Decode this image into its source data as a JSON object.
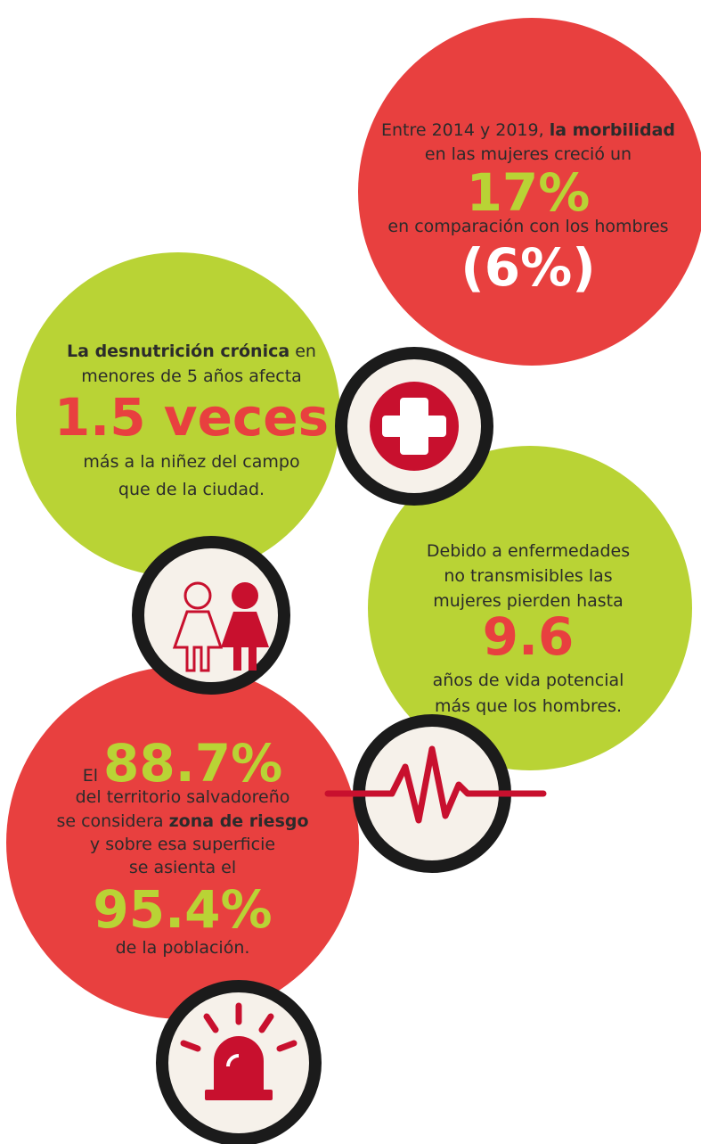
{
  "blocks": [
    {
      "circle_color": "#e8403f",
      "accent": "#b9d335",
      "lines": [
        {
          "segments": [
            {
              "text": "Entre 2014 y 2019, "
            },
            {
              "text": "la morbilidad",
              "style": "bold"
            }
          ]
        },
        {
          "segments": [
            {
              "text": "en las mujeres creció un"
            }
          ]
        },
        {
          "segments": [
            {
              "text": "17%",
              "style": "accent"
            }
          ]
        },
        {
          "segments": [
            {
              "text": "en comparación con los hombres"
            }
          ]
        },
        {
          "segments": [
            {
              "text": "(6%)",
              "style": "white"
            }
          ]
        }
      ]
    },
    {
      "circle_color": "#b9d335",
      "accent": "#e8403f",
      "lines": [
        {
          "segments": [
            {
              "text": "La desnutrición crónica",
              "style": "bold"
            },
            {
              "text": " en"
            }
          ]
        },
        {
          "segments": [
            {
              "text": "menores de 5 años afecta"
            }
          ]
        },
        {
          "segments": [
            {
              "text": "1.5 veces",
              "style": "accent"
            }
          ]
        },
        {
          "segments": [
            {
              "text": "más a la niñez del campo"
            }
          ]
        },
        {
          "segments": [
            {
              "text": "que de la ciudad."
            }
          ]
        }
      ]
    },
    {
      "circle_color": "#b9d335",
      "accent": "#e8403f",
      "lines": [
        {
          "segments": [
            {
              "text": "Debido a enfermedades"
            }
          ]
        },
        {
          "segments": [
            {
              "text": "no transmisibles las"
            }
          ]
        },
        {
          "segments": [
            {
              "text": "mujeres pierden hasta"
            }
          ]
        },
        {
          "segments": [
            {
              "text": "9.6",
              "style": "accent"
            }
          ]
        },
        {
          "segments": [
            {
              "text": "años de vida potencial"
            }
          ]
        },
        {
          "segments": [
            {
              "text": "más que los hombres."
            }
          ]
        }
      ]
    },
    {
      "circle_color": "#e8403f",
      "accent": "#b9d335",
      "lines": [
        {
          "segments": [
            {
              "text": "El "
            },
            {
              "text": "88.7%",
              "style": "accent"
            }
          ]
        },
        {
          "segments": [
            {
              "text": "del territorio salvadoreño"
            }
          ]
        },
        {
          "segments": [
            {
              "text": "se considera "
            },
            {
              "text": "zona de riesgo",
              "style": "bold"
            }
          ]
        },
        {
          "segments": [
            {
              "text": "y sobre esa superficie"
            }
          ]
        },
        {
          "segments": [
            {
              "text": "se asienta el"
            }
          ]
        },
        {
          "segments": [
            {
              "text": "95.4%",
              "style": "accent"
            }
          ]
        },
        {
          "segments": [
            {
              "text": "de la población."
            }
          ]
        }
      ]
    }
  ]
}
